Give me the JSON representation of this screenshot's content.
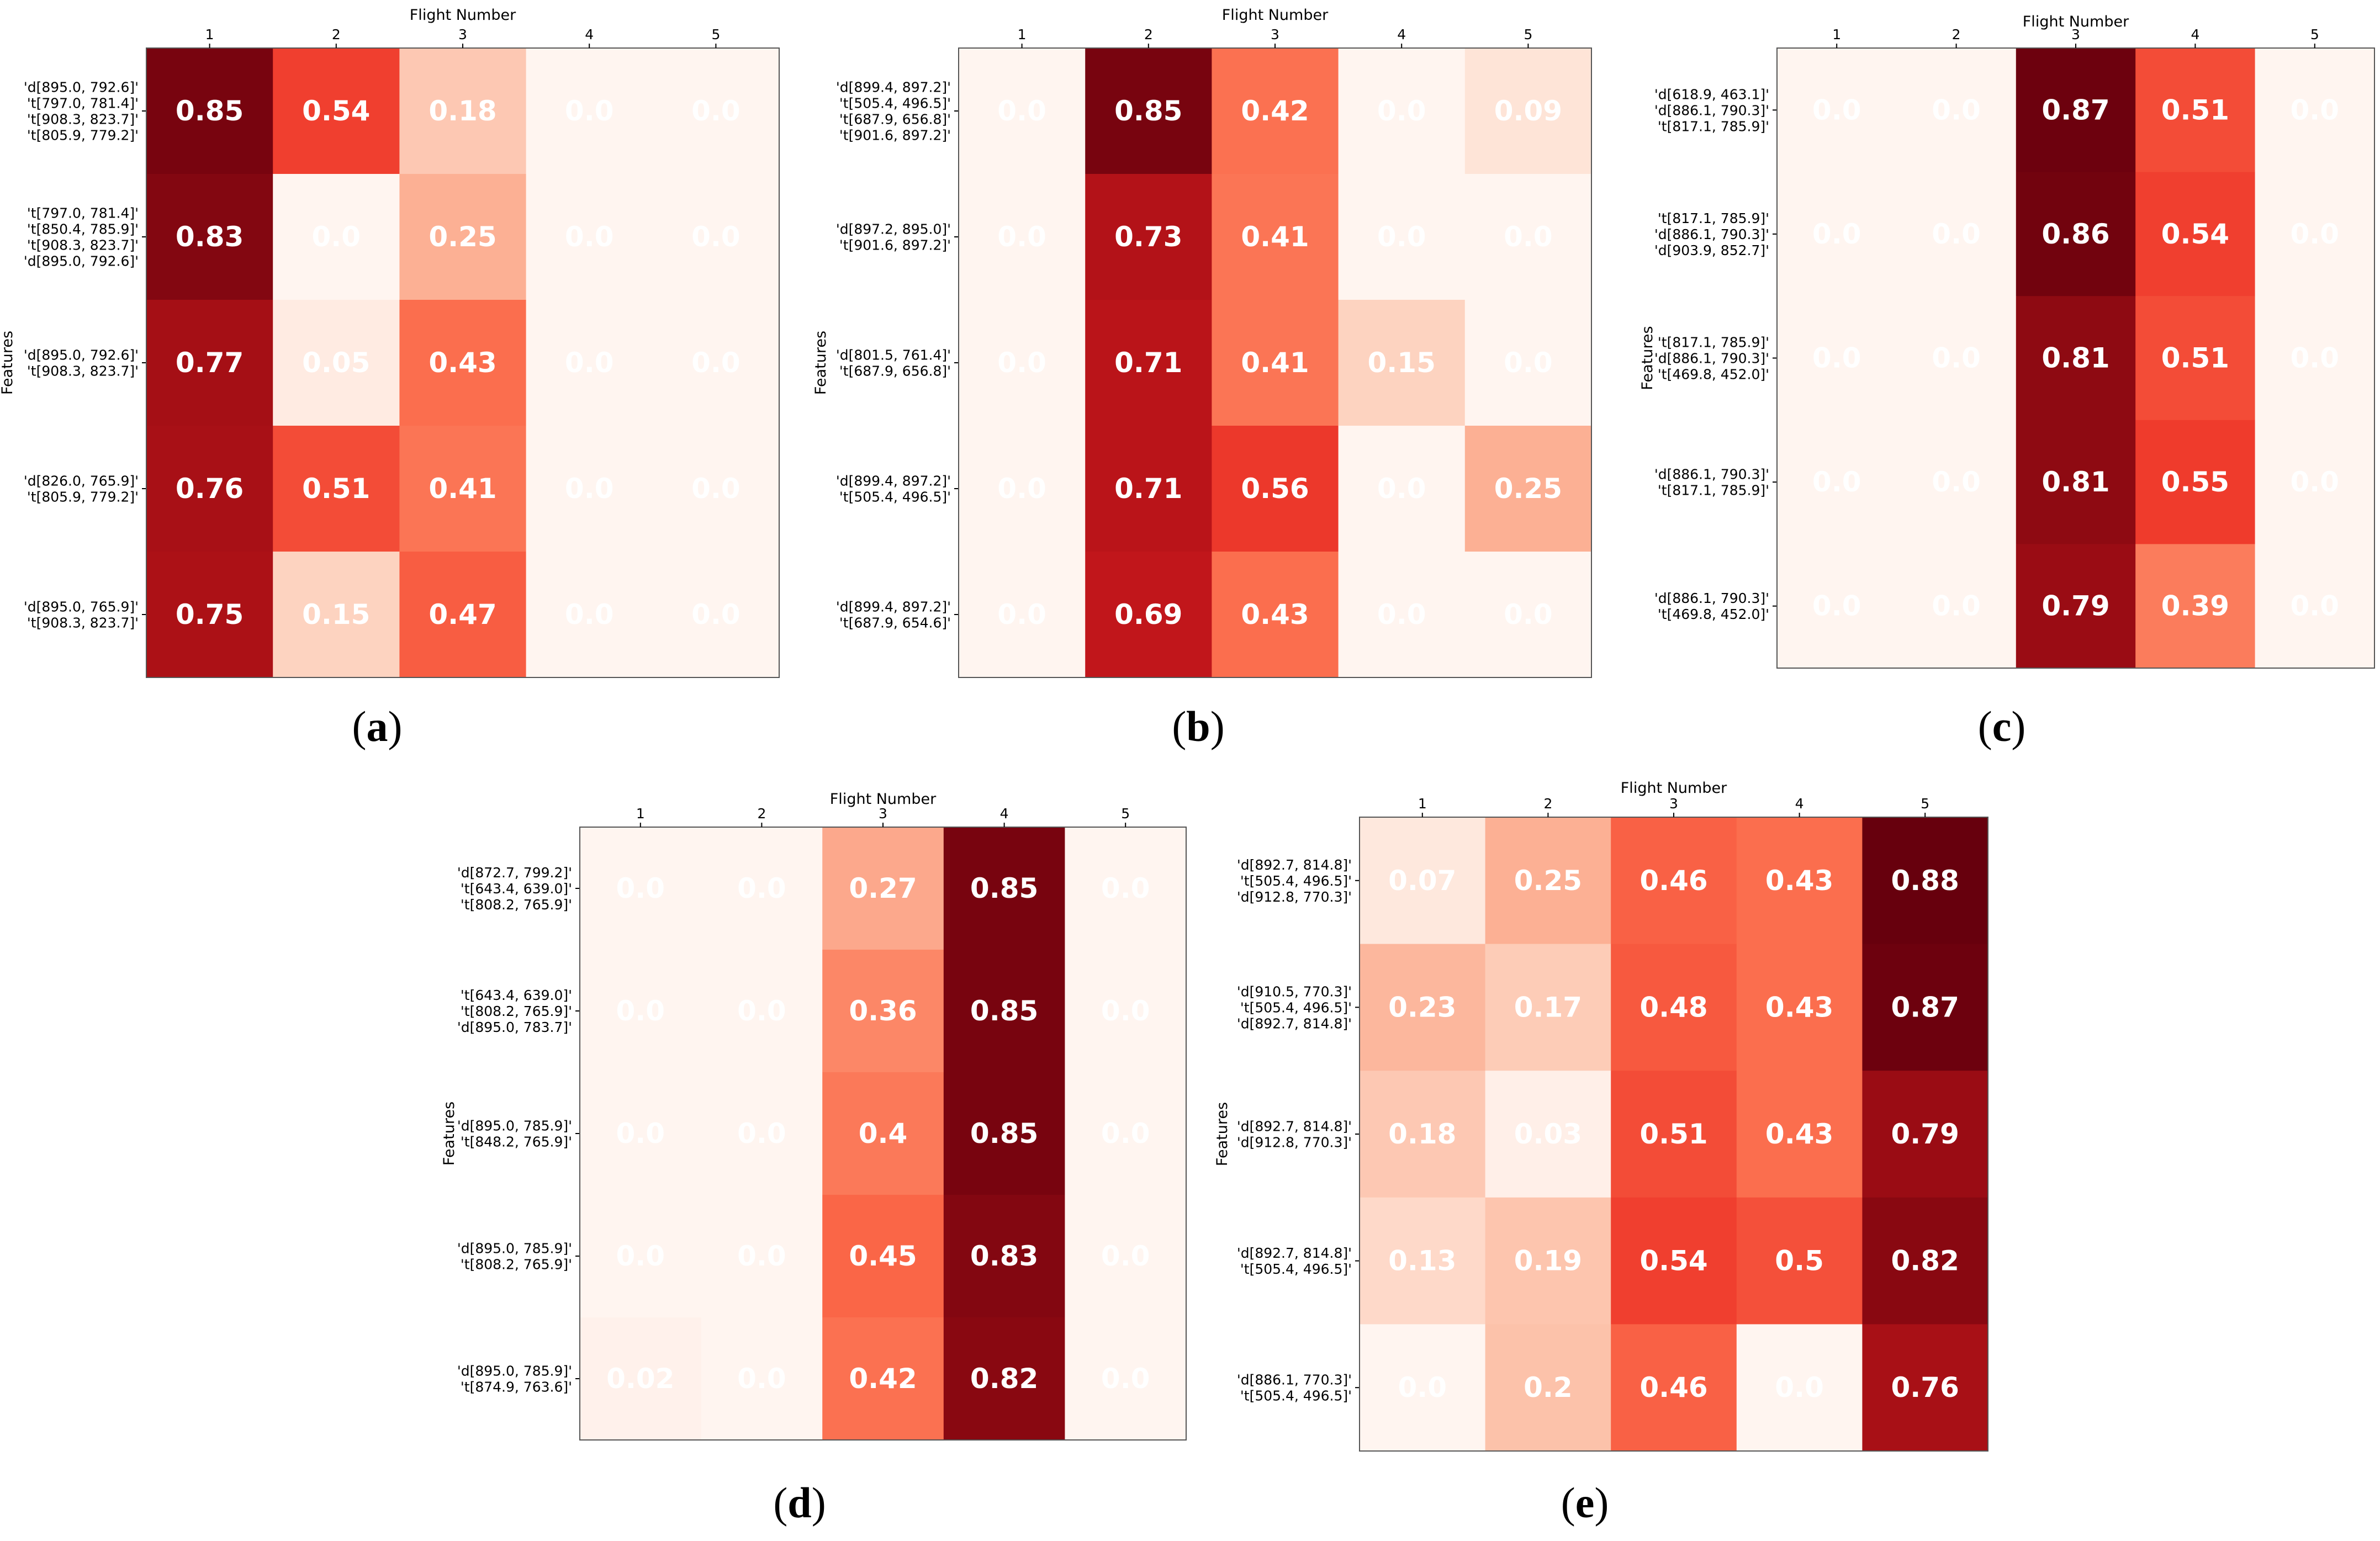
{
  "figure": {
    "x_axis_title": "Flight Number",
    "y_axis_title": "Features"
  },
  "chart_data": [
    {
      "type": "heatmap",
      "panel_label": "a",
      "xlabel": "Flight Number",
      "ylabel": "Features",
      "x_ticks": [
        "1",
        "2",
        "3",
        "4",
        "5"
      ],
      "rows": [
        {
          "label": [
            "'d[895.0, 792.6]'",
            "'t[797.0, 781.4]'",
            "'t[908.3, 823.7]'",
            "'t[805.9, 779.2]'"
          ],
          "values": [
            0.85,
            0.54,
            0.18,
            0.0,
            0.0
          ],
          "text": [
            "0.85",
            "0.54",
            "0.18",
            "0.0",
            "0.0"
          ]
        },
        {
          "label": [
            "'t[797.0, 781.4]'",
            "'t[850.4, 785.9]'",
            "'t[908.3, 823.7]'",
            "'d[895.0, 792.6]'"
          ],
          "values": [
            0.83,
            0.0,
            0.25,
            0.0,
            0.0
          ],
          "text": [
            "0.83",
            "0.0",
            "0.25",
            "0.0",
            "0.0"
          ]
        },
        {
          "label": [
            "'d[895.0, 792.6]'",
            "'t[908.3, 823.7]'"
          ],
          "values": [
            0.77,
            0.05,
            0.43,
            0.0,
            0.0
          ],
          "text": [
            "0.77",
            "0.05",
            "0.43",
            "0.0",
            "0.0"
          ]
        },
        {
          "label": [
            "'d[826.0, 765.9]'",
            "'t[805.9, 779.2]'"
          ],
          "values": [
            0.76,
            0.51,
            0.41,
            0.0,
            0.0
          ],
          "text": [
            "0.76",
            "0.51",
            "0.41",
            "0.0",
            "0.0"
          ]
        },
        {
          "label": [
            "'d[895.0, 765.9]'",
            "'t[908.3, 823.7]'"
          ],
          "values": [
            0.75,
            0.15,
            0.47,
            0.0,
            0.0
          ],
          "text": [
            "0.75",
            "0.15",
            "0.47",
            "0.0",
            "0.0"
          ]
        }
      ]
    },
    {
      "type": "heatmap",
      "panel_label": "b",
      "xlabel": "Flight Number",
      "ylabel": "Features",
      "x_ticks": [
        "1",
        "2",
        "3",
        "4",
        "5"
      ],
      "rows": [
        {
          "label": [
            "'d[899.4, 897.2]'",
            "'t[505.4, 496.5]'",
            "'t[687.9, 656.8]'",
            "'t[901.6, 897.2]'"
          ],
          "values": [
            0.0,
            0.85,
            0.42,
            0.0,
            0.09
          ],
          "text": [
            "0.0",
            "0.85",
            "0.42",
            "0.0",
            "0.09"
          ]
        },
        {
          "label": [
            "'d[897.2, 895.0]'",
            "'t[901.6, 897.2]'"
          ],
          "values": [
            0.0,
            0.73,
            0.41,
            0.0,
            0.0
          ],
          "text": [
            "0.0",
            "0.73",
            "0.41",
            "0.0",
            "0.0"
          ]
        },
        {
          "label": [
            "'d[801.5, 761.4]'",
            "'t[687.9, 656.8]'"
          ],
          "values": [
            0.0,
            0.71,
            0.41,
            0.15,
            0.0
          ],
          "text": [
            "0.0",
            "0.71",
            "0.41",
            "0.15",
            "0.0"
          ]
        },
        {
          "label": [
            "'d[899.4, 897.2]'",
            "'t[505.4, 496.5]'"
          ],
          "values": [
            0.0,
            0.71,
            0.56,
            0.0,
            0.25
          ],
          "text": [
            "0.0",
            "0.71",
            "0.56",
            "0.0",
            "0.25"
          ]
        },
        {
          "label": [
            "'d[899.4, 897.2]'",
            "'t[687.9, 654.6]'"
          ],
          "values": [
            0.0,
            0.69,
            0.43,
            0.0,
            0.0
          ],
          "text": [
            "0.0",
            "0.69",
            "0.43",
            "0.0",
            "0.0"
          ]
        }
      ]
    },
    {
      "type": "heatmap",
      "panel_label": "c",
      "xlabel": "Flight Number",
      "ylabel": "Features",
      "x_ticks": [
        "1",
        "2",
        "3",
        "4",
        "5"
      ],
      "rows": [
        {
          "label": [
            "'d[618.9, 463.1]'",
            "'d[886.1, 790.3]'",
            "'t[817.1, 785.9]'"
          ],
          "values": [
            0.0,
            0.0,
            0.87,
            0.51,
            0.0
          ],
          "text": [
            "0.0",
            "0.0",
            "0.87",
            "0.51",
            "0.0"
          ]
        },
        {
          "label": [
            "'t[817.1, 785.9]'",
            "'d[886.1, 790.3]'",
            "'d[903.9, 852.7]'"
          ],
          "values": [
            0.0,
            0.0,
            0.86,
            0.54,
            0.0
          ],
          "text": [
            "0.0",
            "0.0",
            "0.86",
            "0.54",
            "0.0"
          ]
        },
        {
          "label": [
            "'t[817.1, 785.9]'",
            "'d[886.1, 790.3]'",
            "'t[469.8, 452.0]'"
          ],
          "values": [
            0.0,
            0.0,
            0.81,
            0.51,
            0.0
          ],
          "text": [
            "0.0",
            "0.0",
            "0.81",
            "0.51",
            "0.0"
          ]
        },
        {
          "label": [
            "'d[886.1, 790.3]'",
            "'t[817.1, 785.9]'"
          ],
          "values": [
            0.0,
            0.0,
            0.81,
            0.55,
            0.0
          ],
          "text": [
            "0.0",
            "0.0",
            "0.81",
            "0.55",
            "0.0"
          ]
        },
        {
          "label": [
            "'d[886.1, 790.3]'",
            "'t[469.8, 452.0]'"
          ],
          "values": [
            0.0,
            0.0,
            0.79,
            0.39,
            0.0
          ],
          "text": [
            "0.0",
            "0.0",
            "0.79",
            "0.39",
            "0.0"
          ]
        }
      ]
    },
    {
      "type": "heatmap",
      "panel_label": "d",
      "xlabel": "Flight Number",
      "ylabel": "Features",
      "x_ticks": [
        "1",
        "2",
        "3",
        "4",
        "5"
      ],
      "rows": [
        {
          "label": [
            "'d[872.7, 799.2]'",
            "'t[643.4, 639.0]'",
            "'t[808.2, 765.9]'"
          ],
          "values": [
            0.0,
            0.0,
            0.27,
            0.85,
            0.0
          ],
          "text": [
            "0.0",
            "0.0",
            "0.27",
            "0.85",
            "0.0"
          ]
        },
        {
          "label": [
            "'t[643.4, 639.0]'",
            "'t[808.2, 765.9]'",
            "'d[895.0, 783.7]'"
          ],
          "values": [
            0.0,
            0.0,
            0.36,
            0.85,
            0.0
          ],
          "text": [
            "0.0",
            "0.0",
            "0.36",
            "0.85",
            "0.0"
          ]
        },
        {
          "label": [
            "'d[895.0, 785.9]'",
            "'t[848.2, 765.9]'"
          ],
          "values": [
            0.0,
            0.0,
            0.4,
            0.85,
            0.0
          ],
          "text": [
            "0.0",
            "0.0",
            "0.4",
            "0.85",
            "0.0"
          ]
        },
        {
          "label": [
            "'d[895.0, 785.9]'",
            "'t[808.2, 765.9]'"
          ],
          "values": [
            0.0,
            0.0,
            0.45,
            0.83,
            0.0
          ],
          "text": [
            "0.0",
            "0.0",
            "0.45",
            "0.83",
            "0.0"
          ]
        },
        {
          "label": [
            "'d[895.0, 785.9]'",
            "'t[874.9, 763.6]'"
          ],
          "values": [
            0.02,
            0.0,
            0.42,
            0.82,
            0.0
          ],
          "text": [
            "0.02",
            "0.0",
            "0.42",
            "0.82",
            "0.0"
          ]
        }
      ]
    },
    {
      "type": "heatmap",
      "panel_label": "e",
      "xlabel": "Flight Number",
      "ylabel": "Features",
      "x_ticks": [
        "1",
        "2",
        "3",
        "4",
        "5"
      ],
      "rows": [
        {
          "label": [
            "'d[892.7, 814.8]'",
            "'t[505.4, 496.5]'",
            "'d[912.8, 770.3]'"
          ],
          "values": [
            0.07,
            0.25,
            0.46,
            0.43,
            0.88
          ],
          "text": [
            "0.07",
            "0.25",
            "0.46",
            "0.43",
            "0.88"
          ]
        },
        {
          "label": [
            "'d[910.5, 770.3]'",
            "'t[505.4, 496.5]'",
            "'d[892.7, 814.8]'"
          ],
          "values": [
            0.23,
            0.17,
            0.48,
            0.43,
            0.87
          ],
          "text": [
            "0.23",
            "0.17",
            "0.48",
            "0.43",
            "0.87"
          ]
        },
        {
          "label": [
            "'d[892.7, 814.8]'",
            "'d[912.8, 770.3]'"
          ],
          "values": [
            0.18,
            0.03,
            0.51,
            0.43,
            0.79
          ],
          "text": [
            "0.18",
            "0.03",
            "0.51",
            "0.43",
            "0.79"
          ]
        },
        {
          "label": [
            "'d[892.7, 814.8]'",
            "'t[505.4, 496.5]'"
          ],
          "values": [
            0.13,
            0.19,
            0.54,
            0.5,
            0.82
          ],
          "text": [
            "0.13",
            "0.19",
            "0.54",
            "0.5",
            "0.82"
          ]
        },
        {
          "label": [
            "'d[886.1, 770.3]'",
            "'t[505.4, 496.5]'"
          ],
          "values": [
            0.0,
            0.2,
            0.46,
            0.0,
            0.76
          ],
          "text": [
            "0.0",
            "0.2",
            "0.46",
            "0.0",
            "0.76"
          ]
        }
      ]
    }
  ]
}
